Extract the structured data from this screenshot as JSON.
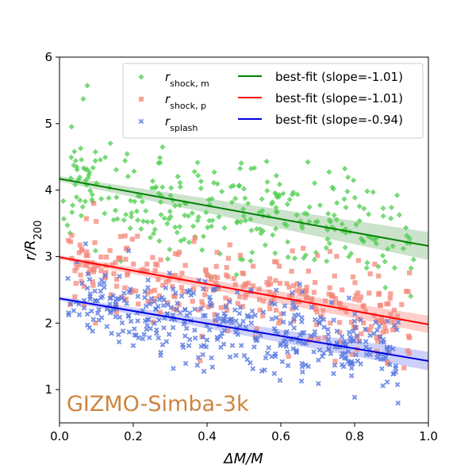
{
  "chart_data": {
    "type": "scatter",
    "title": "",
    "xlabel": "ΔM/M",
    "ylabel": "r/R200",
    "xlim": [
      0.0,
      1.0
    ],
    "ylim": [
      0.5,
      6.0
    ],
    "xticks": [
      "0.0",
      "0.2",
      "0.4",
      "0.6",
      "0.8",
      "1.0"
    ],
    "yticks": [
      "1",
      "2",
      "3",
      "4",
      "5",
      "6"
    ],
    "annotation": "GIZMO-Simba-3k",
    "annotation_color": "#cd853f",
    "legend_position": "upper-right",
    "scatter_series": [
      {
        "name": "r_shock,m",
        "label_main": "r",
        "label_sub": "shock, m",
        "marker": "diamond",
        "color": "#4ccd4c",
        "n": 300,
        "x_range": [
          0.01,
          0.96
        ],
        "intercept": 4.15,
        "slope": -0.95,
        "spread": 0.42,
        "seed": 11
      },
      {
        "name": "r_shock,p",
        "label_main": "r",
        "label_sub": "shock, p",
        "marker": "square",
        "color": "#f4877a",
        "n": 330,
        "x_range": [
          0.02,
          0.95
        ],
        "intercept": 2.98,
        "slope": -1.0,
        "spread": 0.32,
        "seed": 23
      },
      {
        "name": "r_splash",
        "label_main": "r",
        "label_sub": "splash",
        "marker": "x",
        "color": "#5577e0",
        "n": 420,
        "x_range": [
          0.02,
          0.92
        ],
        "intercept": 2.35,
        "slope": -0.92,
        "spread": 0.3,
        "seed": 37
      }
    ],
    "fit_series": [
      {
        "name": "best-fit (slope=-1.01)",
        "color": "#008000",
        "band_color": "#2e8b2e",
        "intercept": 4.17,
        "slope": -1.01,
        "band_halfwidth": [
          0.04,
          0.21
        ]
      },
      {
        "name": "best-fit (slope=-1.01)",
        "color": "#ff0000",
        "band_color": "#ff3b30",
        "intercept": 2.99,
        "slope": -1.01,
        "band_halfwidth": [
          0.03,
          0.13
        ]
      },
      {
        "name": "best-fit (slope=-0.94)",
        "color": "#0000dd",
        "band_color": "#3344ee",
        "intercept": 2.37,
        "slope": -0.94,
        "band_halfwidth": [
          0.03,
          0.14
        ]
      }
    ]
  }
}
